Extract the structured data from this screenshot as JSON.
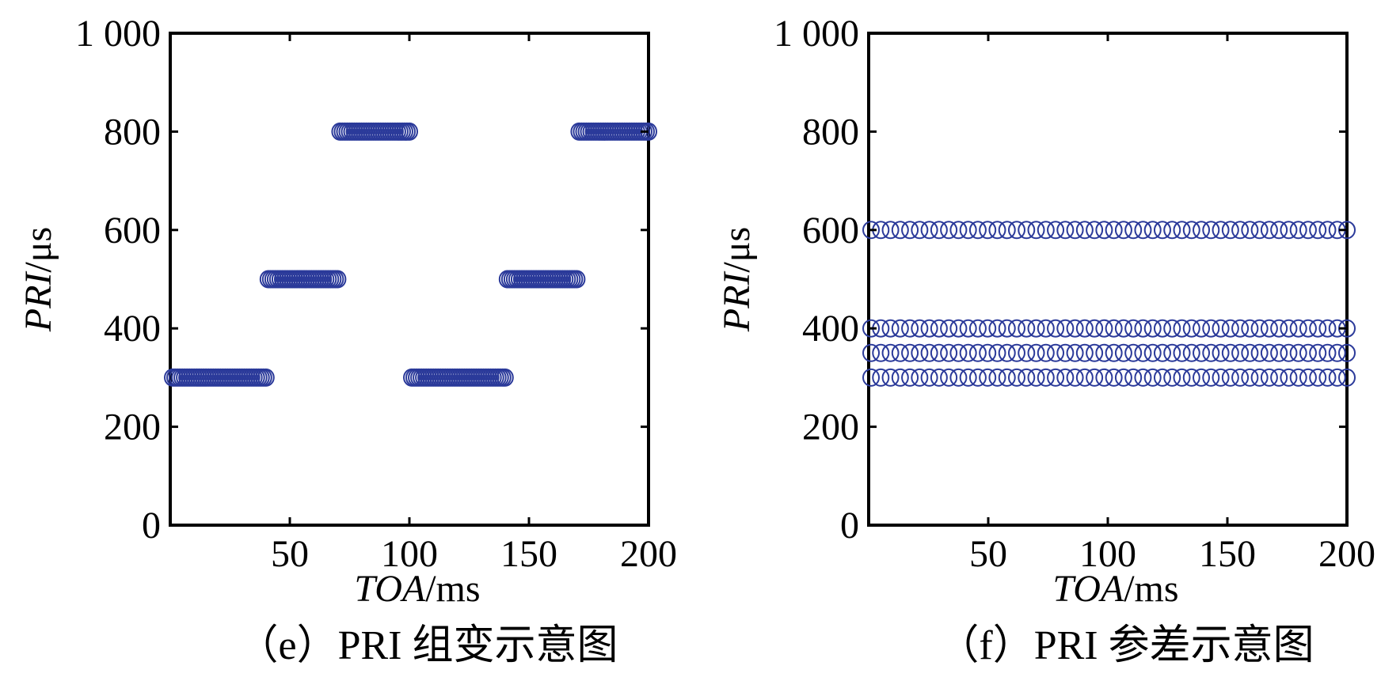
{
  "chart_data": [
    {
      "type": "scatter",
      "caption": "（e）PRI 组变示意图",
      "xlabel": {
        "var": "TOA",
        "unit": "/ms"
      },
      "ylabel": {
        "var": "PRI",
        "unit": "/μs"
      },
      "xlim": [
        0,
        200
      ],
      "ylim": [
        0,
        1000
      ],
      "xticks": [
        50,
        100,
        150,
        200
      ],
      "xtick_labels": [
        "50",
        "100",
        "150",
        "200"
      ],
      "yticks": [
        0,
        200,
        400,
        600,
        800,
        1000
      ],
      "ytick_labels": [
        "0",
        "200",
        "400",
        "600",
        "800",
        "1 000"
      ],
      "grid": false,
      "marker": "open-circle",
      "color": "#2B3A9A",
      "segments": [
        {
          "x_start": 1,
          "x_end": 40,
          "y": 300,
          "count": 40
        },
        {
          "x_start": 41,
          "x_end": 70,
          "y": 500,
          "count": 30
        },
        {
          "x_start": 71,
          "x_end": 100,
          "y": 800,
          "count": 30
        },
        {
          "x_start": 101,
          "x_end": 140,
          "y": 300,
          "count": 40
        },
        {
          "x_start": 141,
          "x_end": 170,
          "y": 500,
          "count": 30
        },
        {
          "x_start": 171,
          "x_end": 200,
          "y": 800,
          "count": 30
        }
      ]
    },
    {
      "type": "scatter",
      "caption": "（f）PRI 参差示意图",
      "xlabel": {
        "var": "TOA",
        "unit": "/ms"
      },
      "ylabel": {
        "var": "PRI",
        "unit": "/μs"
      },
      "xlim": [
        0,
        200
      ],
      "ylim": [
        0,
        1000
      ],
      "xticks": [
        50,
        100,
        150,
        200
      ],
      "xtick_labels": [
        "50",
        "100",
        "150",
        "200"
      ],
      "yticks": [
        0,
        200,
        400,
        600,
        800,
        1000
      ],
      "ytick_labels": [
        "0",
        "200",
        "400",
        "600",
        "800",
        "1 000"
      ],
      "grid": false,
      "marker": "open-circle",
      "color": "#2B3A9A",
      "segments": [
        {
          "x_start": 1,
          "x_end": 200,
          "y": 300,
          "count": 50
        },
        {
          "x_start": 1,
          "x_end": 200,
          "y": 350,
          "count": 50
        },
        {
          "x_start": 1,
          "x_end": 200,
          "y": 400,
          "count": 50
        },
        {
          "x_start": 1,
          "x_end": 200,
          "y": 600,
          "count": 50
        }
      ]
    }
  ]
}
